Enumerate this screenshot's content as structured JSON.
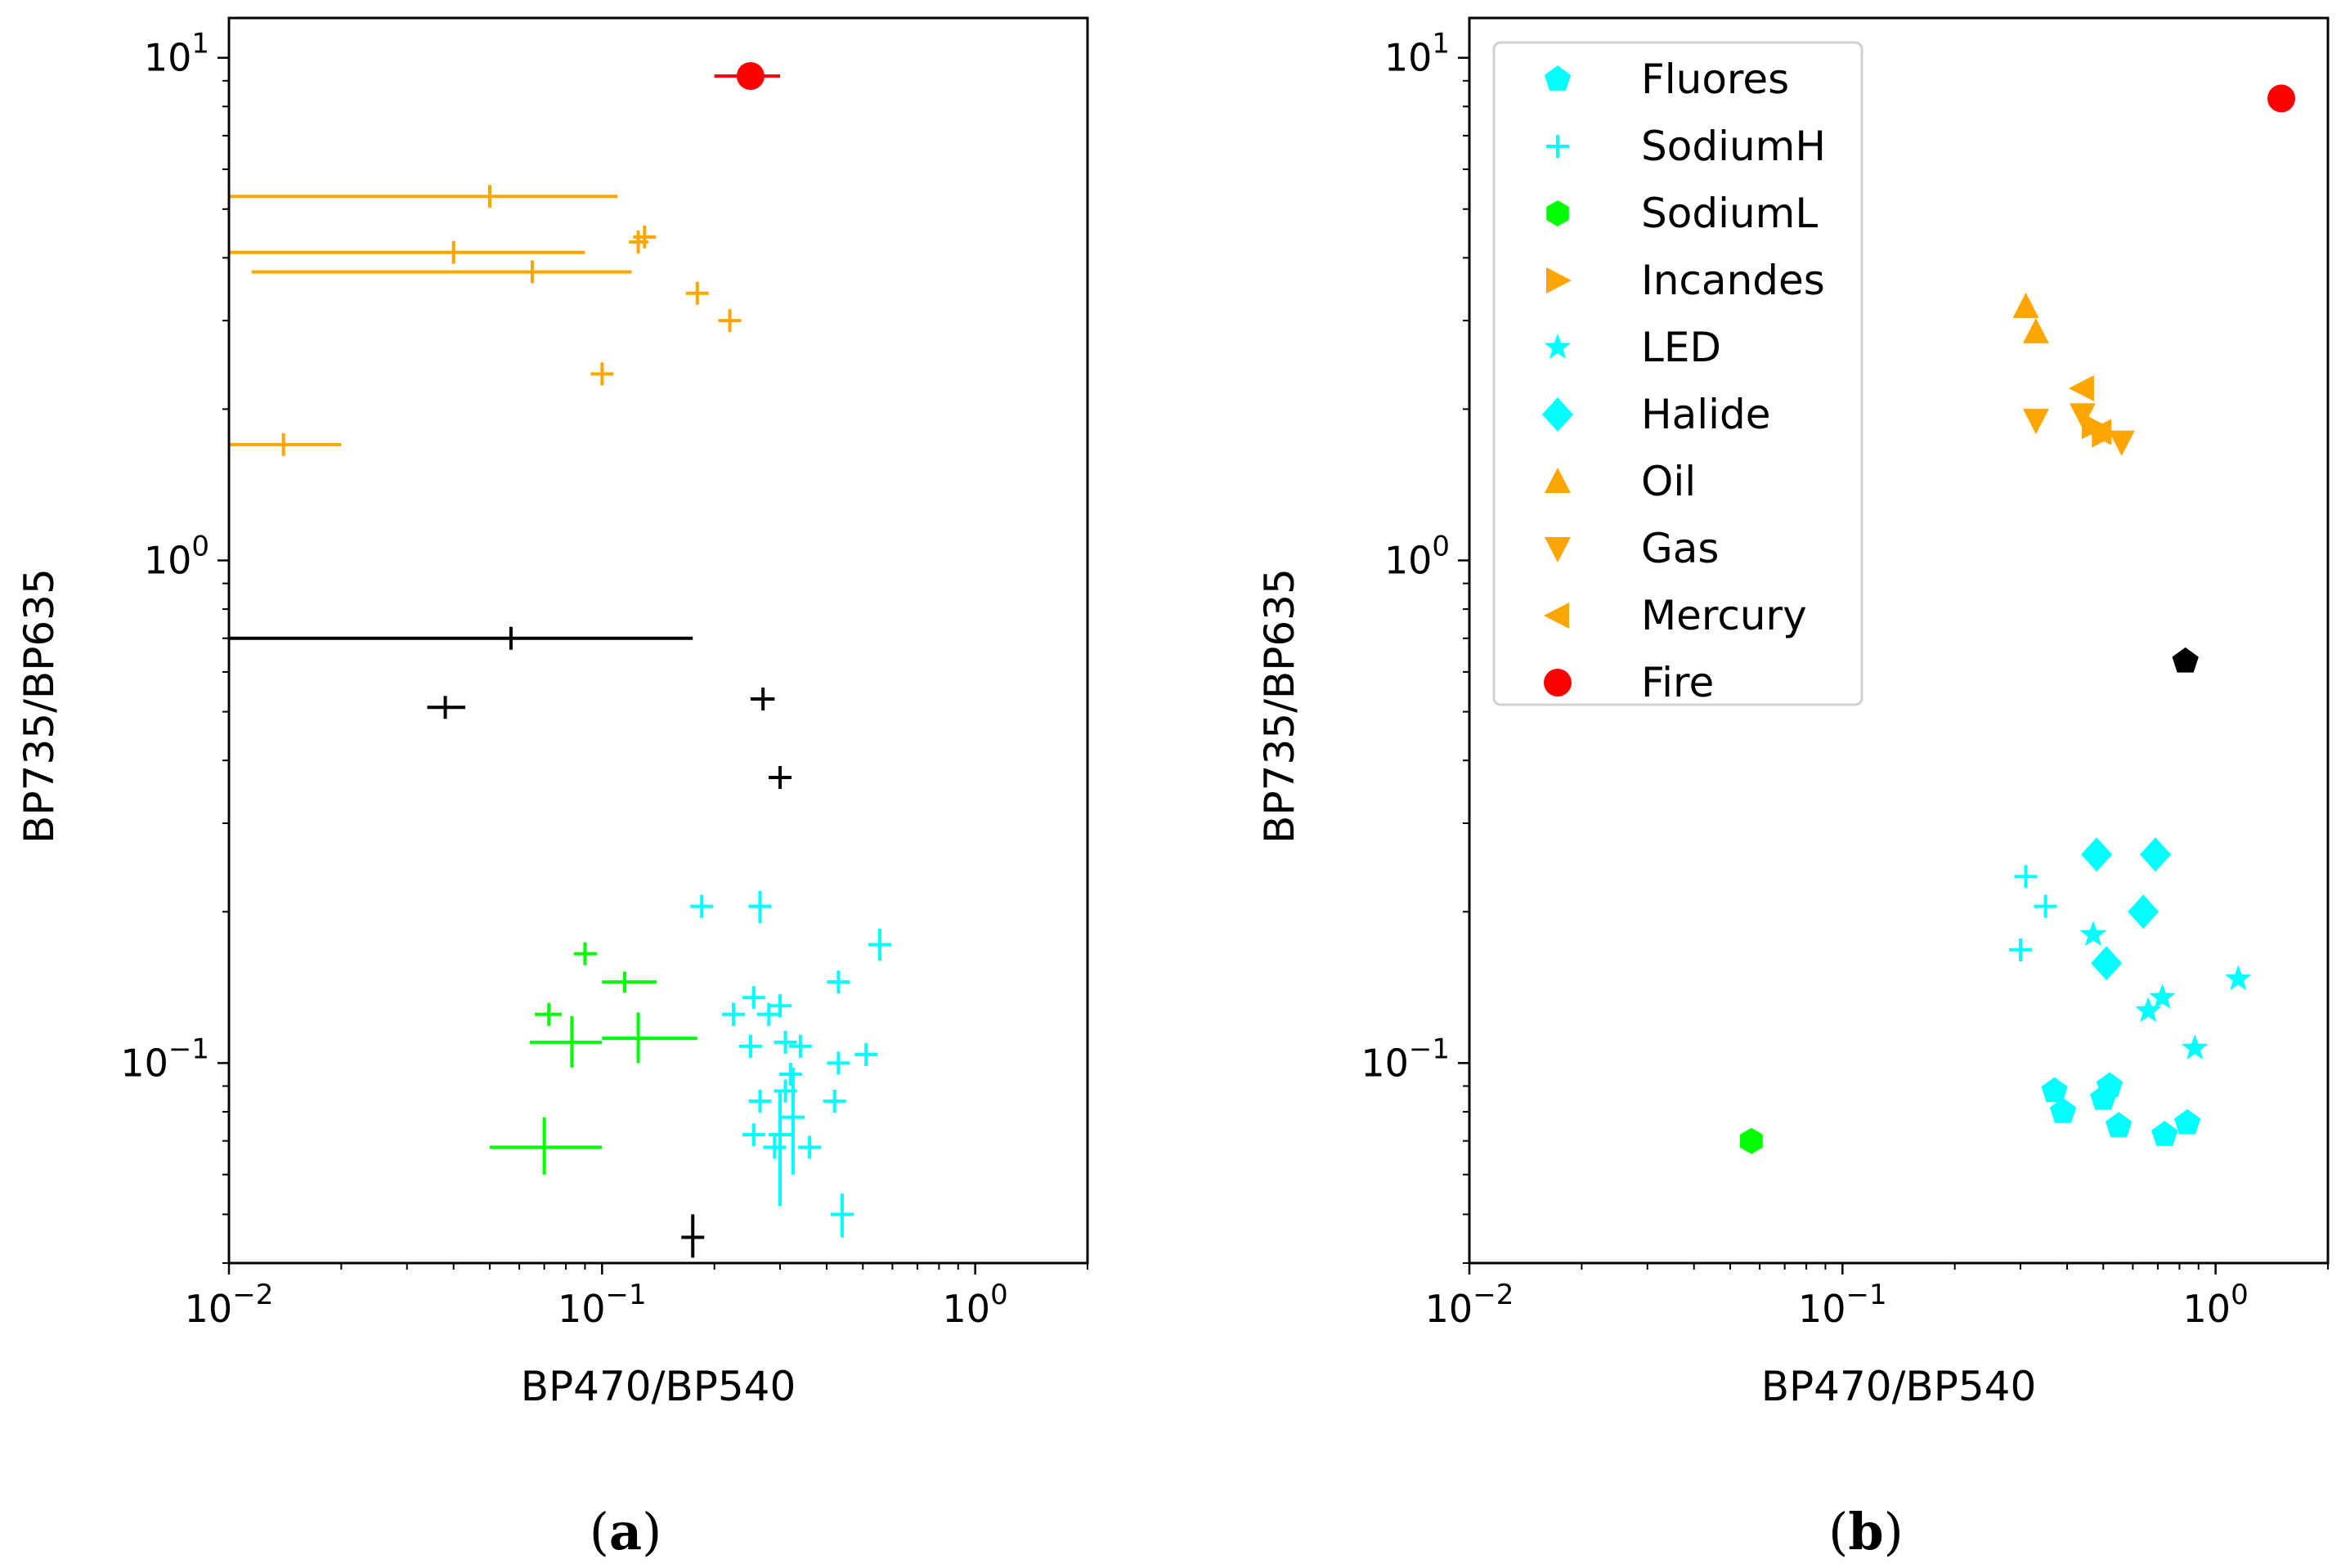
{
  "chart_data": [
    {
      "type": "scatter",
      "panel_label": "(a)",
      "panel_label_bold": "a",
      "xlabel": "BP470/BP540",
      "ylabel": "BP735/BP635",
      "xscale": "log",
      "yscale": "log",
      "xlim": [
        0.01,
        2.0
      ],
      "ylim": [
        0.04,
        12.0
      ],
      "xticks": [
        {
          "value": 0.01,
          "base": "10",
          "exp": "−2"
        },
        {
          "value": 0.1,
          "base": "10",
          "exp": "−1"
        },
        {
          "value": 1.0,
          "base": "10",
          "exp": "0"
        }
      ],
      "yticks": [
        {
          "value": 0.1,
          "base": "10",
          "exp": "−1"
        },
        {
          "value": 1.0,
          "base": "10",
          "exp": "0"
        },
        {
          "value": 10.0,
          "base": "10",
          "exp": "1"
        }
      ],
      "groups": [
        {
          "color": "#ff0000",
          "marker": "circle",
          "points": [
            {
              "x": 0.25,
              "y": 9.2,
              "xerr": [
                0.2,
                0.3
              ]
            }
          ]
        },
        {
          "color": "#ffa500",
          "marker": "errorbar",
          "points": [
            {
              "x": 0.05,
              "y": 5.3,
              "xerr": [
                0.01,
                0.11
              ]
            },
            {
              "x": 0.04,
              "y": 4.1,
              "xerr": [
                0.01,
                0.09
              ]
            },
            {
              "x": 0.065,
              "y": 3.75,
              "xerr": [
                0.0115,
                0.12
              ]
            },
            {
              "x": 0.125,
              "y": 4.3,
              "xerr": [
                0.118,
                0.133
              ]
            },
            {
              "x": 0.13,
              "y": 4.4
            },
            {
              "x": 0.18,
              "y": 3.4
            },
            {
              "x": 0.22,
              "y": 3.0
            },
            {
              "x": 0.1,
              "y": 2.35
            },
            {
              "x": 0.014,
              "y": 1.7,
              "xerr": [
                0.01,
                0.02
              ]
            }
          ]
        },
        {
          "color": "#000000",
          "marker": "errorbar",
          "points": [
            {
              "x": 0.057,
              "y": 0.7,
              "xerr": [
                0.01,
                0.175
              ]
            },
            {
              "x": 0.038,
              "y": 0.51,
              "xerr": [
                0.034,
                0.043
              ]
            },
            {
              "x": 0.27,
              "y": 0.53,
              "xerr": [
                0.25,
                0.29
              ]
            },
            {
              "x": 0.3,
              "y": 0.37
            },
            {
              "x": 0.175,
              "y": 0.045,
              "yerr": [
                0.041,
                0.05
              ]
            }
          ]
        },
        {
          "color": "#00ff00",
          "marker": "errorbar",
          "points": [
            {
              "x": 0.09,
              "y": 0.165,
              "xerr": [
                0.084,
                0.097
              ]
            },
            {
              "x": 0.072,
              "y": 0.125,
              "xerr": [
                0.066,
                0.078
              ]
            },
            {
              "x": 0.115,
              "y": 0.145,
              "xerr": [
                0.1,
                0.14
              ],
              "yerr": [
                0.138,
                0.152
              ]
            },
            {
              "x": 0.083,
              "y": 0.11,
              "xerr": [
                0.064,
                0.1
              ],
              "yerr": [
                0.098,
                0.124
              ]
            },
            {
              "x": 0.125,
              "y": 0.112,
              "xerr": [
                0.1,
                0.18
              ],
              "yerr": [
                0.1,
                0.126
              ]
            },
            {
              "x": 0.07,
              "y": 0.068,
              "xerr": [
                0.05,
                0.1
              ],
              "yerr": [
                0.06,
                0.078
              ]
            }
          ]
        },
        {
          "color": "#00ffff",
          "marker": "errorbar",
          "points": [
            {
              "x": 0.185,
              "y": 0.205
            },
            {
              "x": 0.265,
              "y": 0.205,
              "yerr": [
                0.19,
                0.22
              ]
            },
            {
              "x": 0.555,
              "y": 0.172,
              "yerr": [
                0.16,
                0.185
              ]
            },
            {
              "x": 0.43,
              "y": 0.145
            },
            {
              "x": 0.255,
              "y": 0.135
            },
            {
              "x": 0.225,
              "y": 0.125
            },
            {
              "x": 0.28,
              "y": 0.125,
              "xerr": [
                0.26,
                0.3
              ]
            },
            {
              "x": 0.3,
              "y": 0.13
            },
            {
              "x": 0.31,
              "y": 0.11
            },
            {
              "x": 0.34,
              "y": 0.108
            },
            {
              "x": 0.25,
              "y": 0.108
            },
            {
              "x": 0.43,
              "y": 0.1
            },
            {
              "x": 0.51,
              "y": 0.104
            },
            {
              "x": 0.32,
              "y": 0.095
            },
            {
              "x": 0.325,
              "y": 0.078,
              "yerr": [
                0.06,
                0.098
              ]
            },
            {
              "x": 0.3,
              "y": 0.072,
              "yerr": [
                0.052,
                0.088
              ]
            },
            {
              "x": 0.265,
              "y": 0.084
            },
            {
              "x": 0.255,
              "y": 0.072
            },
            {
              "x": 0.31,
              "y": 0.088
            },
            {
              "x": 0.29,
              "y": 0.068
            },
            {
              "x": 0.36,
              "y": 0.068
            },
            {
              "x": 0.42,
              "y": 0.084
            },
            {
              "x": 0.44,
              "y": 0.05,
              "yerr": [
                0.045,
                0.055
              ]
            }
          ]
        }
      ]
    },
    {
      "type": "scatter",
      "panel_label": "(b)",
      "panel_label_bold": "b",
      "xlabel": "BP470/BP540",
      "ylabel": "BP735/BP635",
      "xscale": "log",
      "yscale": "log",
      "xlim": [
        0.01,
        2.0
      ],
      "ylim": [
        0.04,
        12.0
      ],
      "xticks": [
        {
          "value": 0.01,
          "base": "10",
          "exp": "−2"
        },
        {
          "value": 0.1,
          "base": "10",
          "exp": "−1"
        },
        {
          "value": 1.0,
          "base": "10",
          "exp": "0"
        }
      ],
      "yticks": [
        {
          "value": 0.1,
          "base": "10",
          "exp": "−1"
        },
        {
          "value": 1.0,
          "base": "10",
          "exp": "0"
        },
        {
          "value": 10.0,
          "base": "10",
          "exp": "1"
        }
      ],
      "legend_position": "upper-left",
      "series": [
        {
          "name": "Fluores",
          "color": "#00ffff",
          "marker": "pentagon",
          "points": [
            {
              "x": 0.37,
              "y": 0.088
            },
            {
              "x": 0.39,
              "y": 0.08
            },
            {
              "x": 0.5,
              "y": 0.085
            },
            {
              "x": 0.52,
              "y": 0.09
            },
            {
              "x": 0.55,
              "y": 0.075
            },
            {
              "x": 0.73,
              "y": 0.072
            },
            {
              "x": 0.84,
              "y": 0.076
            }
          ]
        },
        {
          "name": "SodiumH",
          "color": "#00ffff",
          "marker": "plus",
          "points": [
            {
              "x": 0.31,
              "y": 0.235
            },
            {
              "x": 0.35,
              "y": 0.205
            },
            {
              "x": 0.3,
              "y": 0.168
            }
          ]
        },
        {
          "name": "SodiumL",
          "color": "#00ff00",
          "marker": "hexagon",
          "points": [
            {
              "x": 0.057,
              "y": 0.07
            }
          ]
        },
        {
          "name": "Incandes",
          "color": "#ffa500",
          "marker": "triangle-right",
          "points": [
            {
              "x": 0.47,
              "y": 1.85
            },
            {
              "x": 0.5,
              "y": 1.78
            }
          ]
        },
        {
          "name": "LED",
          "color": "#00ffff",
          "marker": "star",
          "points": [
            {
              "x": 0.47,
              "y": 0.18
            },
            {
              "x": 0.72,
              "y": 0.135
            },
            {
              "x": 0.66,
              "y": 0.127
            },
            {
              "x": 1.15,
              "y": 0.147
            },
            {
              "x": 0.88,
              "y": 0.107
            }
          ]
        },
        {
          "name": "Halide",
          "color": "#00ffff",
          "marker": "diamond",
          "points": [
            {
              "x": 0.48,
              "y": 0.26
            },
            {
              "x": 0.69,
              "y": 0.26
            },
            {
              "x": 0.64,
              "y": 0.2
            },
            {
              "x": 0.51,
              "y": 0.158
            }
          ]
        },
        {
          "name": "Oil",
          "color": "#ffa500",
          "marker": "triangle-up",
          "points": [
            {
              "x": 0.31,
              "y": 3.2
            },
            {
              "x": 0.33,
              "y": 2.85
            }
          ]
        },
        {
          "name": "Gas",
          "color": "#ffa500",
          "marker": "triangle-down",
          "points": [
            {
              "x": 0.33,
              "y": 1.9
            },
            {
              "x": 0.44,
              "y": 1.95
            },
            {
              "x": 0.56,
              "y": 1.72
            }
          ]
        },
        {
          "name": "Mercury",
          "color": "#ffa500",
          "marker": "triangle-left",
          "points": [
            {
              "x": 0.44,
              "y": 2.2
            },
            {
              "x": 0.49,
              "y": 1.8
            }
          ]
        },
        {
          "name": "Fire",
          "color": "#ff0000",
          "marker": "circle",
          "points": [
            {
              "x": 1.5,
              "y": 8.3
            }
          ]
        }
      ],
      "unlisted_points": [
        {
          "color": "#000000",
          "marker": "pentagon",
          "x": 0.83,
          "y": 0.63
        }
      ]
    }
  ]
}
